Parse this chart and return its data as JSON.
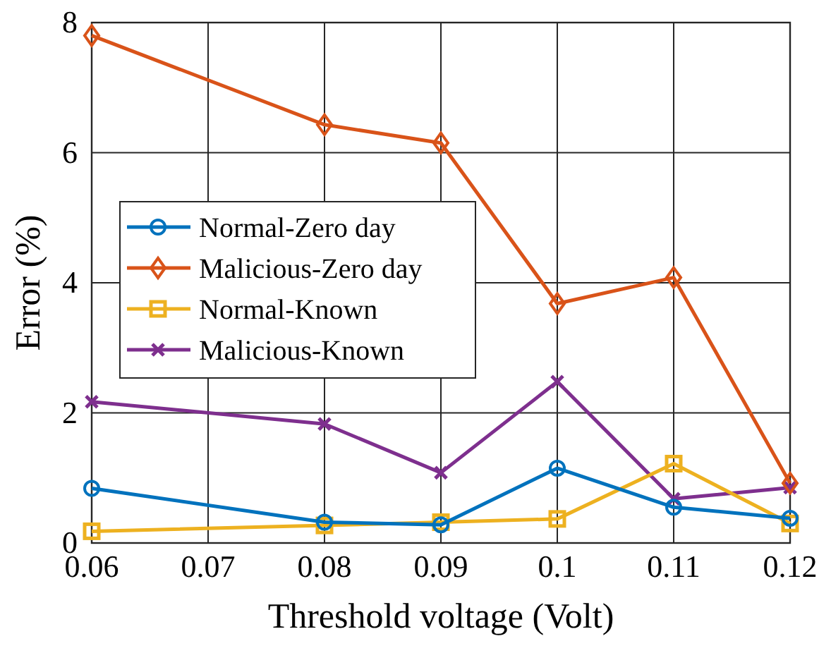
{
  "chart_data": {
    "type": "line",
    "xlabel": "Threshold voltage (Volt)",
    "ylabel": "Error (%)",
    "x": [
      0.06,
      0.08,
      0.09,
      0.1,
      0.11,
      0.12
    ],
    "xlim": [
      0.06,
      0.12
    ],
    "xticks": [
      0.06,
      0.07,
      0.08,
      0.09,
      {
        "value": 0.1,
        "label": "0.1"
      },
      0.11,
      0.12
    ],
    "ylim": [
      0,
      8
    ],
    "yticks": [
      0,
      2,
      4,
      6,
      8
    ],
    "grid": true,
    "legend": "left",
    "line_style": "solid",
    "series": [
      {
        "name": "Normal-Zero day",
        "color": "#0072bd",
        "marker": "circle",
        "values": [
          0.84,
          0.32,
          0.28,
          1.15,
          0.55,
          0.38
        ]
      },
      {
        "name": "Malicious-Zero day",
        "color": "#d95319",
        "marker": "diamond",
        "values": [
          7.8,
          6.43,
          6.15,
          3.68,
          4.08,
          0.92
        ]
      },
      {
        "name": "Normal-Known",
        "color": "#edb120",
        "marker": "square",
        "values": [
          0.18,
          0.27,
          0.32,
          0.37,
          1.22,
          0.3
        ]
      },
      {
        "name": "Malicious-Known",
        "color": "#7e2f8e",
        "marker": "cross",
        "values": [
          2.17,
          1.83,
          1.08,
          2.48,
          0.68,
          0.85
        ]
      }
    ]
  }
}
